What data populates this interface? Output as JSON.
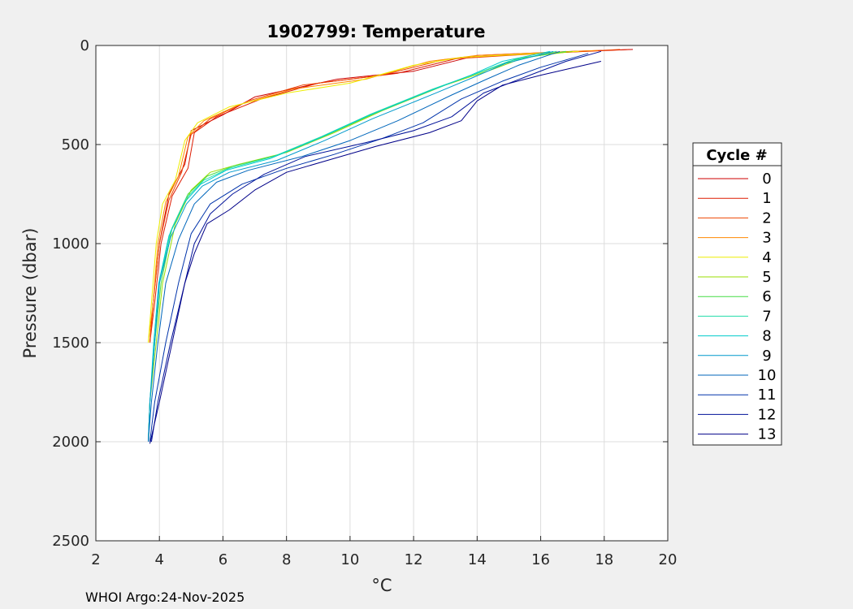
{
  "chart_data": {
    "type": "line",
    "title": "1902799:  Temperature",
    "xlabel": "°C",
    "ylabel": "Pressure (dbar)",
    "xlim": [
      2,
      20
    ],
    "ylim": [
      0,
      2500
    ],
    "y_reversed": true,
    "grid": true,
    "x_ticks": [
      2,
      4,
      6,
      8,
      10,
      12,
      14,
      16,
      18,
      20
    ],
    "y_ticks": [
      0,
      500,
      1000,
      1500,
      2000,
      2500
    ],
    "legend_title": "Cycle #",
    "legend_position": "outside-right",
    "footer": "WHOI Argo:24-Nov-2025",
    "series": [
      {
        "name": "0",
        "color": "#cc0000",
        "points": [
          [
            18.9,
            20
          ],
          [
            17,
            30
          ],
          [
            14,
            50
          ],
          [
            12,
            130
          ],
          [
            9.6,
            170
          ],
          [
            7,
            260
          ],
          [
            6,
            350
          ],
          [
            5,
            430
          ],
          [
            4.8,
            600
          ],
          [
            4.3,
            750
          ],
          [
            4.0,
            1000
          ],
          [
            3.8,
            1300
          ],
          [
            3.7,
            1500
          ]
        ]
      },
      {
        "name": "1",
        "color": "#dd1a00",
        "points": [
          [
            18.8,
            20
          ],
          [
            16,
            40
          ],
          [
            13.5,
            60
          ],
          [
            11.5,
            140
          ],
          [
            9,
            190
          ],
          [
            7.2,
            270
          ],
          [
            5.8,
            360
          ],
          [
            5.1,
            440
          ],
          [
            4.9,
            620
          ],
          [
            4.4,
            760
          ],
          [
            4.05,
            1000
          ],
          [
            3.85,
            1300
          ],
          [
            3.7,
            1500
          ]
        ]
      },
      {
        "name": "2",
        "color": "#ee4400",
        "points": [
          [
            18.5,
            20
          ],
          [
            15,
            50
          ],
          [
            13,
            70
          ],
          [
            11,
            150
          ],
          [
            8.5,
            200
          ],
          [
            6.8,
            280
          ],
          [
            5.6,
            370
          ],
          [
            5.0,
            450
          ],
          [
            4.7,
            640
          ],
          [
            4.3,
            780
          ],
          [
            4.0,
            1000
          ],
          [
            3.8,
            1300
          ],
          [
            3.7,
            1500
          ]
        ]
      },
      {
        "name": "3",
        "color": "#ff8800",
        "points": [
          [
            17.8,
            25
          ],
          [
            14,
            50
          ],
          [
            12.5,
            80
          ],
          [
            10.5,
            170
          ],
          [
            8.2,
            220
          ],
          [
            6.5,
            300
          ],
          [
            5.4,
            380
          ],
          [
            4.9,
            460
          ],
          [
            4.6,
            660
          ],
          [
            4.2,
            790
          ],
          [
            3.95,
            1000
          ],
          [
            3.8,
            1300
          ],
          [
            3.65,
            1500
          ]
        ]
      },
      {
        "name": "4",
        "color": "#eeee00",
        "points": [
          [
            17.2,
            30
          ],
          [
            13.5,
            60
          ],
          [
            12,
            100
          ],
          [
            10,
            190
          ],
          [
            8,
            240
          ],
          [
            6.2,
            310
          ],
          [
            5.2,
            390
          ],
          [
            4.8,
            480
          ],
          [
            4.5,
            680
          ],
          [
            4.1,
            800
          ],
          [
            3.9,
            1000
          ],
          [
            3.75,
            1300
          ],
          [
            3.65,
            1500
          ]
        ]
      },
      {
        "name": "5",
        "color": "#99dd00",
        "points": [
          [
            17,
            30
          ],
          [
            15.5,
            60
          ],
          [
            14.5,
            120
          ],
          [
            13,
            200
          ],
          [
            11,
            330
          ],
          [
            9.5,
            440
          ],
          [
            8,
            540
          ],
          [
            6.5,
            600
          ],
          [
            5.6,
            640
          ],
          [
            5.0,
            730
          ],
          [
            4.5,
            900
          ],
          [
            4.1,
            1200
          ],
          [
            3.9,
            1500
          ],
          [
            3.7,
            1800
          ],
          [
            3.65,
            2000
          ]
        ]
      },
      {
        "name": "6",
        "color": "#44dd44",
        "points": [
          [
            16.8,
            30
          ],
          [
            15.2,
            70
          ],
          [
            14.2,
            130
          ],
          [
            12.8,
            210
          ],
          [
            10.8,
            340
          ],
          [
            9.3,
            450
          ],
          [
            7.8,
            550
          ],
          [
            6.3,
            610
          ],
          [
            5.5,
            660
          ],
          [
            4.9,
            750
          ],
          [
            4.4,
            920
          ],
          [
            4.05,
            1200
          ],
          [
            3.85,
            1500
          ],
          [
            3.7,
            1800
          ],
          [
            3.65,
            2000
          ]
        ]
      },
      {
        "name": "7",
        "color": "#22ddaa",
        "points": [
          [
            16.5,
            30
          ],
          [
            15,
            80
          ],
          [
            14,
            140
          ],
          [
            12.6,
            220
          ],
          [
            10.6,
            350
          ],
          [
            9.1,
            460
          ],
          [
            7.6,
            560
          ],
          [
            6.2,
            620
          ],
          [
            5.4,
            680
          ],
          [
            4.85,
            770
          ],
          [
            4.35,
            940
          ],
          [
            4.0,
            1200
          ],
          [
            3.85,
            1500
          ],
          [
            3.7,
            1800
          ],
          [
            3.65,
            2000
          ]
        ]
      },
      {
        "name": "8",
        "color": "#00cccc",
        "points": [
          [
            16.3,
            30
          ],
          [
            14.8,
            80
          ],
          [
            13.8,
            150
          ],
          [
            12.5,
            230
          ],
          [
            10.5,
            360
          ],
          [
            9,
            470
          ],
          [
            7.5,
            570
          ],
          [
            6.1,
            630
          ],
          [
            5.3,
            700
          ],
          [
            4.8,
            790
          ],
          [
            4.3,
            960
          ],
          [
            3.98,
            1200
          ],
          [
            3.82,
            1500
          ],
          [
            3.7,
            1800
          ],
          [
            3.65,
            2000
          ]
        ]
      },
      {
        "name": "9",
        "color": "#0099cc",
        "points": [
          [
            16.4,
            30
          ],
          [
            14.9,
            90
          ],
          [
            13.9,
            160
          ],
          [
            12.7,
            240
          ],
          [
            10.7,
            370
          ],
          [
            9.2,
            480
          ],
          [
            7.7,
            580
          ],
          [
            6.2,
            640
          ],
          [
            5.35,
            710
          ],
          [
            4.85,
            800
          ],
          [
            4.35,
            970
          ],
          [
            4.0,
            1200
          ],
          [
            3.85,
            1500
          ],
          [
            3.7,
            1800
          ],
          [
            3.65,
            2000
          ]
        ]
      },
      {
        "name": "10",
        "color": "#0066bb",
        "points": [
          [
            16.6,
            30
          ],
          [
            15.3,
            100
          ],
          [
            14.3,
            170
          ],
          [
            13.2,
            250
          ],
          [
            11.5,
            380
          ],
          [
            10,
            480
          ],
          [
            8.5,
            560
          ],
          [
            6.8,
            630
          ],
          [
            5.8,
            690
          ],
          [
            5.1,
            800
          ],
          [
            4.6,
            980
          ],
          [
            4.2,
            1200
          ],
          [
            3.95,
            1500
          ],
          [
            3.75,
            1800
          ],
          [
            3.65,
            2000
          ]
        ]
      },
      {
        "name": "11",
        "color": "#0033aa",
        "points": [
          [
            17.5,
            40
          ],
          [
            16,
            110
          ],
          [
            14.8,
            180
          ],
          [
            13.5,
            270
          ],
          [
            12.3,
            390
          ],
          [
            11,
            470
          ],
          [
            9.5,
            550
          ],
          [
            8,
            620
          ],
          [
            6.6,
            700
          ],
          [
            5.6,
            800
          ],
          [
            5.0,
            950
          ],
          [
            4.6,
            1200
          ],
          [
            4.2,
            1500
          ],
          [
            3.85,
            1800
          ],
          [
            3.7,
            2000
          ]
        ]
      },
      {
        "name": "12",
        "color": "#001199",
        "points": [
          [
            17.9,
            30
          ],
          [
            16.8,
            80
          ],
          [
            15.5,
            160
          ],
          [
            14.2,
            240
          ],
          [
            13.2,
            360
          ],
          [
            12,
            430
          ],
          [
            10.5,
            490
          ],
          [
            8.6,
            560
          ],
          [
            7.3,
            650
          ],
          [
            6.3,
            750
          ],
          [
            5.6,
            850
          ],
          [
            5.1,
            1000
          ],
          [
            4.8,
            1200
          ],
          [
            4.35,
            1500
          ],
          [
            3.95,
            1800
          ],
          [
            3.75,
            2000
          ]
        ]
      },
      {
        "name": "13",
        "color": "#000088",
        "points": [
          [
            17.9,
            80
          ],
          [
            16,
            150
          ],
          [
            14.8,
            200
          ],
          [
            14,
            280
          ],
          [
            13.5,
            380
          ],
          [
            12.5,
            440
          ],
          [
            10.8,
            510
          ],
          [
            9.5,
            570
          ],
          [
            8,
            640
          ],
          [
            7,
            730
          ],
          [
            6.2,
            830
          ],
          [
            5.5,
            900
          ],
          [
            5.1,
            1050
          ],
          [
            4.8,
            1200
          ],
          [
            4.4,
            1500
          ],
          [
            4.0,
            1800
          ],
          [
            3.7,
            2010
          ]
        ]
      }
    ]
  }
}
